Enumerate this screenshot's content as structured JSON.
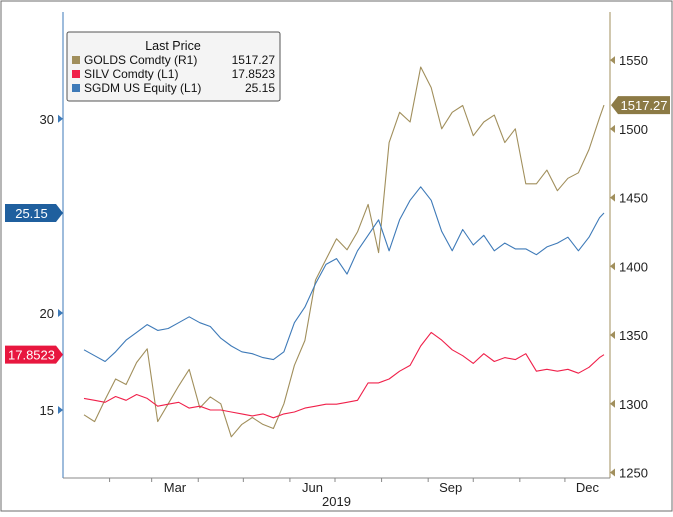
{
  "chart_data": {
    "type": "line",
    "xlabel": "2019",
    "x_ticks": [
      "Mar",
      "Jun",
      "Sep",
      "Dec"
    ],
    "left_axis": {
      "ylim": [
        11.5,
        35.5
      ],
      "ticks": [
        15,
        20,
        30
      ]
    },
    "right_axis": {
      "ylim": [
        1246,
        1585
      ],
      "ticks": [
        1250,
        1300,
        1350,
        1400,
        1450,
        1500,
        1550
      ]
    },
    "grid": false,
    "legend": {
      "title": "Last Price",
      "placement": "top-left",
      "entries": [
        {
          "label": "GOLDS Comdty  (R1)",
          "value": "1517.27",
          "color": "#a18f5c"
        },
        {
          "label": "SILV Comdty  (L1)",
          "value": "17.8523",
          "color": "#f0204a"
        },
        {
          "label": "SGDM US Equity  (L1)",
          "value": "25.15",
          "color": "#3e7ab8"
        }
      ]
    },
    "last_value_tags": [
      {
        "series": "SGDM US Equity",
        "text": "25.15",
        "axis": "left",
        "value": 25.15,
        "color": "#1f5f9e"
      },
      {
        "series": "SILV Comdty",
        "text": "17.8523",
        "axis": "left",
        "value": 17.8523,
        "color": "#e8173f"
      },
      {
        "series": "GOLDS Comdty",
        "text": "1517.27",
        "axis": "right",
        "value": 1517.27,
        "color": "#8c7a45"
      }
    ],
    "series": [
      {
        "name": "GOLDS Comdty",
        "axis": "right",
        "color": "#a18f5c",
        "dates": [
          "2019-01-15",
          "2019-01-22",
          "2019-01-29",
          "2019-02-05",
          "2019-02-12",
          "2019-02-19",
          "2019-02-26",
          "2019-03-05",
          "2019-03-12",
          "2019-03-19",
          "2019-03-26",
          "2019-04-02",
          "2019-04-09",
          "2019-04-16",
          "2019-04-23",
          "2019-04-30",
          "2019-05-07",
          "2019-05-14",
          "2019-05-21",
          "2019-05-28",
          "2019-06-04",
          "2019-06-11",
          "2019-06-18",
          "2019-06-25",
          "2019-07-02",
          "2019-07-09",
          "2019-07-16",
          "2019-07-23",
          "2019-07-30",
          "2019-08-06",
          "2019-08-13",
          "2019-08-20",
          "2019-08-27",
          "2019-09-03",
          "2019-09-10",
          "2019-09-17",
          "2019-09-24",
          "2019-10-01",
          "2019-10-08",
          "2019-10-15",
          "2019-10-22",
          "2019-10-29",
          "2019-11-05",
          "2019-11-12",
          "2019-11-19",
          "2019-11-26",
          "2019-12-03",
          "2019-12-10",
          "2019-12-17",
          "2019-12-24",
          "2019-12-27"
        ],
        "values": [
          1292,
          1287,
          1303,
          1318,
          1314,
          1330,
          1340,
          1287,
          1300,
          1313,
          1325,
          1297,
          1305,
          1300,
          1276,
          1285,
          1290,
          1285,
          1282,
          1300,
          1328,
          1346,
          1390,
          1405,
          1420,
          1412,
          1425,
          1445,
          1410,
          1490,
          1512,
          1505,
          1545,
          1530,
          1500,
          1512,
          1517,
          1495,
          1505,
          1510,
          1490,
          1500,
          1460,
          1460,
          1470,
          1455,
          1464,
          1468,
          1485,
          1508,
          1517.27
        ]
      },
      {
        "name": "SILV Comdty",
        "axis": "left",
        "color": "#f0204a",
        "dates": [
          "2019-01-15",
          "2019-01-22",
          "2019-01-29",
          "2019-02-05",
          "2019-02-12",
          "2019-02-19",
          "2019-02-26",
          "2019-03-05",
          "2019-03-12",
          "2019-03-19",
          "2019-03-26",
          "2019-04-02",
          "2019-04-09",
          "2019-04-16",
          "2019-04-23",
          "2019-04-30",
          "2019-05-07",
          "2019-05-14",
          "2019-05-21",
          "2019-05-28",
          "2019-06-04",
          "2019-06-11",
          "2019-06-18",
          "2019-06-25",
          "2019-07-02",
          "2019-07-09",
          "2019-07-16",
          "2019-07-23",
          "2019-07-30",
          "2019-08-06",
          "2019-08-13",
          "2019-08-20",
          "2019-08-27",
          "2019-09-03",
          "2019-09-10",
          "2019-09-17",
          "2019-09-24",
          "2019-10-01",
          "2019-10-08",
          "2019-10-15",
          "2019-10-22",
          "2019-10-29",
          "2019-11-05",
          "2019-11-12",
          "2019-11-19",
          "2019-11-26",
          "2019-12-03",
          "2019-12-10",
          "2019-12-17",
          "2019-12-24",
          "2019-12-27"
        ],
        "values": [
          15.6,
          15.5,
          15.4,
          15.7,
          15.5,
          15.8,
          15.6,
          15.2,
          15.3,
          15.4,
          15.1,
          15.2,
          15.0,
          15.0,
          14.9,
          14.8,
          14.7,
          14.8,
          14.6,
          14.8,
          14.9,
          15.1,
          15.2,
          15.3,
          15.3,
          15.4,
          15.5,
          16.4,
          16.4,
          16.6,
          17.0,
          17.3,
          18.3,
          19.0,
          18.6,
          18.1,
          17.8,
          17.4,
          17.9,
          17.5,
          17.7,
          17.6,
          17.9,
          17.0,
          17.1,
          17.0,
          17.1,
          16.9,
          17.2,
          17.7,
          17.8523
        ]
      },
      {
        "name": "SGDM US Equity",
        "axis": "left",
        "color": "#3e7ab8",
        "dates": [
          "2019-01-15",
          "2019-01-22",
          "2019-01-29",
          "2019-02-05",
          "2019-02-12",
          "2019-02-19",
          "2019-02-26",
          "2019-03-05",
          "2019-03-12",
          "2019-03-19",
          "2019-03-26",
          "2019-04-02",
          "2019-04-09",
          "2019-04-16",
          "2019-04-23",
          "2019-04-30",
          "2019-05-07",
          "2019-05-14",
          "2019-05-21",
          "2019-05-28",
          "2019-06-04",
          "2019-06-11",
          "2019-06-18",
          "2019-06-25",
          "2019-07-02",
          "2019-07-09",
          "2019-07-16",
          "2019-07-23",
          "2019-07-30",
          "2019-08-06",
          "2019-08-13",
          "2019-08-20",
          "2019-08-27",
          "2019-09-03",
          "2019-09-10",
          "2019-09-17",
          "2019-09-24",
          "2019-10-01",
          "2019-10-08",
          "2019-10-15",
          "2019-10-22",
          "2019-10-29",
          "2019-11-05",
          "2019-11-12",
          "2019-11-19",
          "2019-11-26",
          "2019-12-03",
          "2019-12-10",
          "2019-12-17",
          "2019-12-24",
          "2019-12-27"
        ],
        "values": [
          18.1,
          17.8,
          17.5,
          18.0,
          18.6,
          19.0,
          19.4,
          19.1,
          19.2,
          19.5,
          19.8,
          19.5,
          19.3,
          18.7,
          18.3,
          18.0,
          17.9,
          17.7,
          17.6,
          18.0,
          19.5,
          20.3,
          21.5,
          22.5,
          22.8,
          22.0,
          23.2,
          24.0,
          24.8,
          23.2,
          24.8,
          25.8,
          26.5,
          25.8,
          24.2,
          23.2,
          24.3,
          23.5,
          24.0,
          23.2,
          23.6,
          23.3,
          23.3,
          23.0,
          23.4,
          23.6,
          23.9,
          23.2,
          23.9,
          24.9,
          25.15
        ]
      }
    ]
  }
}
